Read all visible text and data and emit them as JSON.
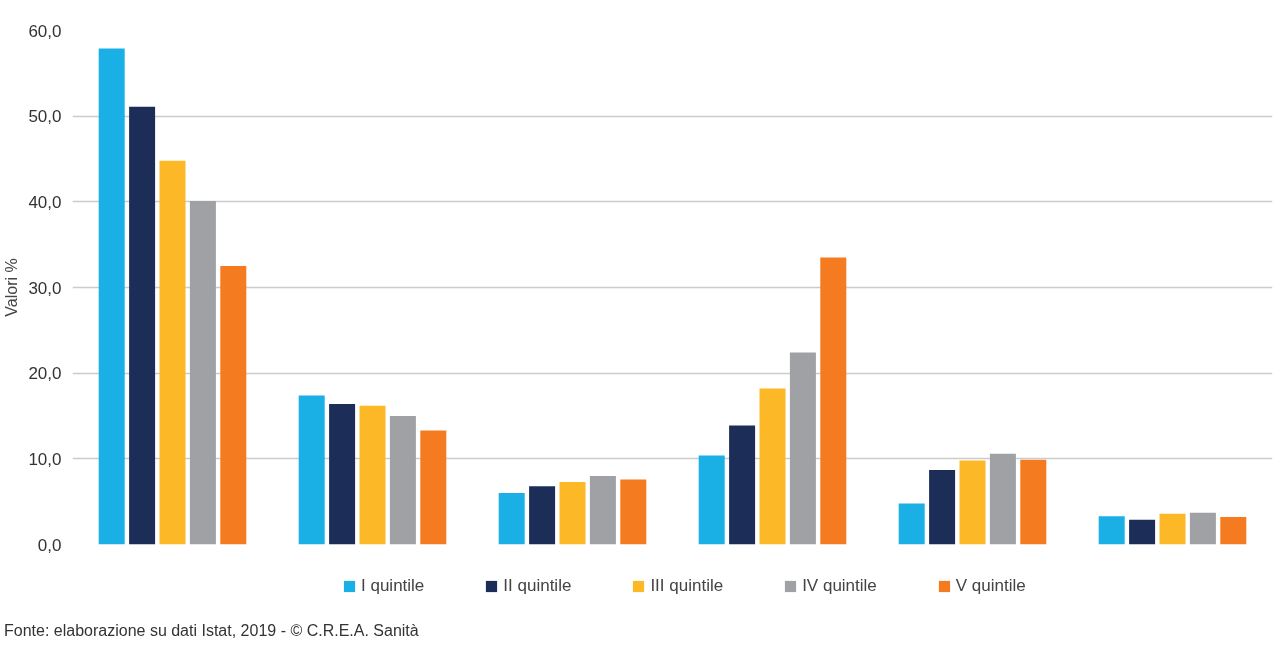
{
  "chart_data": {
    "type": "bar",
    "ylabel": "Valori %",
    "categories": [
      null,
      null,
      null,
      null,
      null,
      null
    ],
    "series": [
      {
        "name": "I quintile",
        "color": "#1ab0e6",
        "values": [
          57.9,
          17.4,
          6.0,
          10.4,
          4.8,
          3.3
        ]
      },
      {
        "name": "II quintile",
        "color": "#1c2d57",
        "values": [
          51.1,
          16.4,
          6.8,
          13.9,
          8.7,
          2.9
        ]
      },
      {
        "name": "III quintile",
        "color": "#fdb827",
        "values": [
          44.8,
          16.2,
          7.3,
          18.2,
          9.8,
          3.6
        ]
      },
      {
        "name": "IV quintile",
        "color": "#a0a1a4",
        "values": [
          40.1,
          15.0,
          8.0,
          22.4,
          10.6,
          3.7
        ]
      },
      {
        "name": "V quintile",
        "color": "#f47b20",
        "values": [
          32.5,
          13.3,
          7.6,
          33.5,
          9.9,
          3.2
        ]
      }
    ],
    "ylim": [
      0,
      60
    ],
    "yticks": [
      {
        "value": 0,
        "label": "0,0"
      },
      {
        "value": 10,
        "label": "10,0"
      },
      {
        "value": 20,
        "label": "20,0"
      },
      {
        "value": 30,
        "label": "30,0"
      },
      {
        "value": 40,
        "label": "40,0"
      },
      {
        "value": 50,
        "label": "50,0"
      },
      {
        "value": 60,
        "label": "60,0"
      }
    ],
    "grid": "y",
    "legend": "bottom",
    "tick_labels": "y",
    "annotations": [
      "Fonte: elaborazione su dati Istat, 2019 - © C.R.E.A. Sanità"
    ]
  }
}
